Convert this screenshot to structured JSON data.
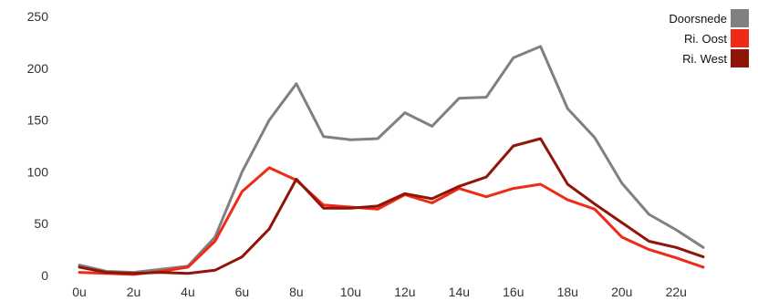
{
  "chart_data": {
    "type": "line",
    "title": "",
    "xlabel": "",
    "ylabel": "",
    "x": [
      0,
      1,
      2,
      3,
      4,
      5,
      6,
      7,
      8,
      9,
      10,
      11,
      12,
      13,
      14,
      15,
      16,
      17,
      18,
      19,
      20,
      21,
      22,
      23
    ],
    "x_tick_labels": [
      "0u",
      "2u",
      "4u",
      "6u",
      "8u",
      "10u",
      "12u",
      "14u",
      "16u",
      "18u",
      "20u",
      "22u"
    ],
    "x_tick_values": [
      0,
      2,
      4,
      6,
      8,
      10,
      12,
      14,
      16,
      18,
      20,
      22
    ],
    "y_ticks": [
      0,
      50,
      100,
      150,
      200,
      250
    ],
    "ylim": [
      0,
      250
    ],
    "xlim": [
      0,
      23
    ],
    "grid": false,
    "legend_position": "top-right",
    "series": [
      {
        "name": "Doorsnede",
        "color": "#808080",
        "values": [
          10,
          4,
          3,
          6,
          9,
          37,
          100,
          150,
          185,
          134,
          131,
          132,
          157,
          144,
          171,
          172,
          210,
          221,
          161,
          133,
          89,
          59,
          44,
          27
        ]
      },
      {
        "name": "Ri. Oost",
        "color": "#ef2a17",
        "values": [
          3,
          2,
          1,
          4,
          8,
          33,
          81,
          104,
          92,
          68,
          66,
          64,
          78,
          70,
          84,
          76,
          84,
          88,
          73,
          64,
          37,
          25,
          17,
          8
        ]
      },
      {
        "name": "Ri. West",
        "color": "#8e1507",
        "values": [
          8,
          3,
          2,
          3,
          2,
          5,
          18,
          45,
          93,
          65,
          65,
          67,
          79,
          74,
          86,
          95,
          125,
          132,
          88,
          69,
          51,
          33,
          27,
          18
        ]
      }
    ]
  }
}
